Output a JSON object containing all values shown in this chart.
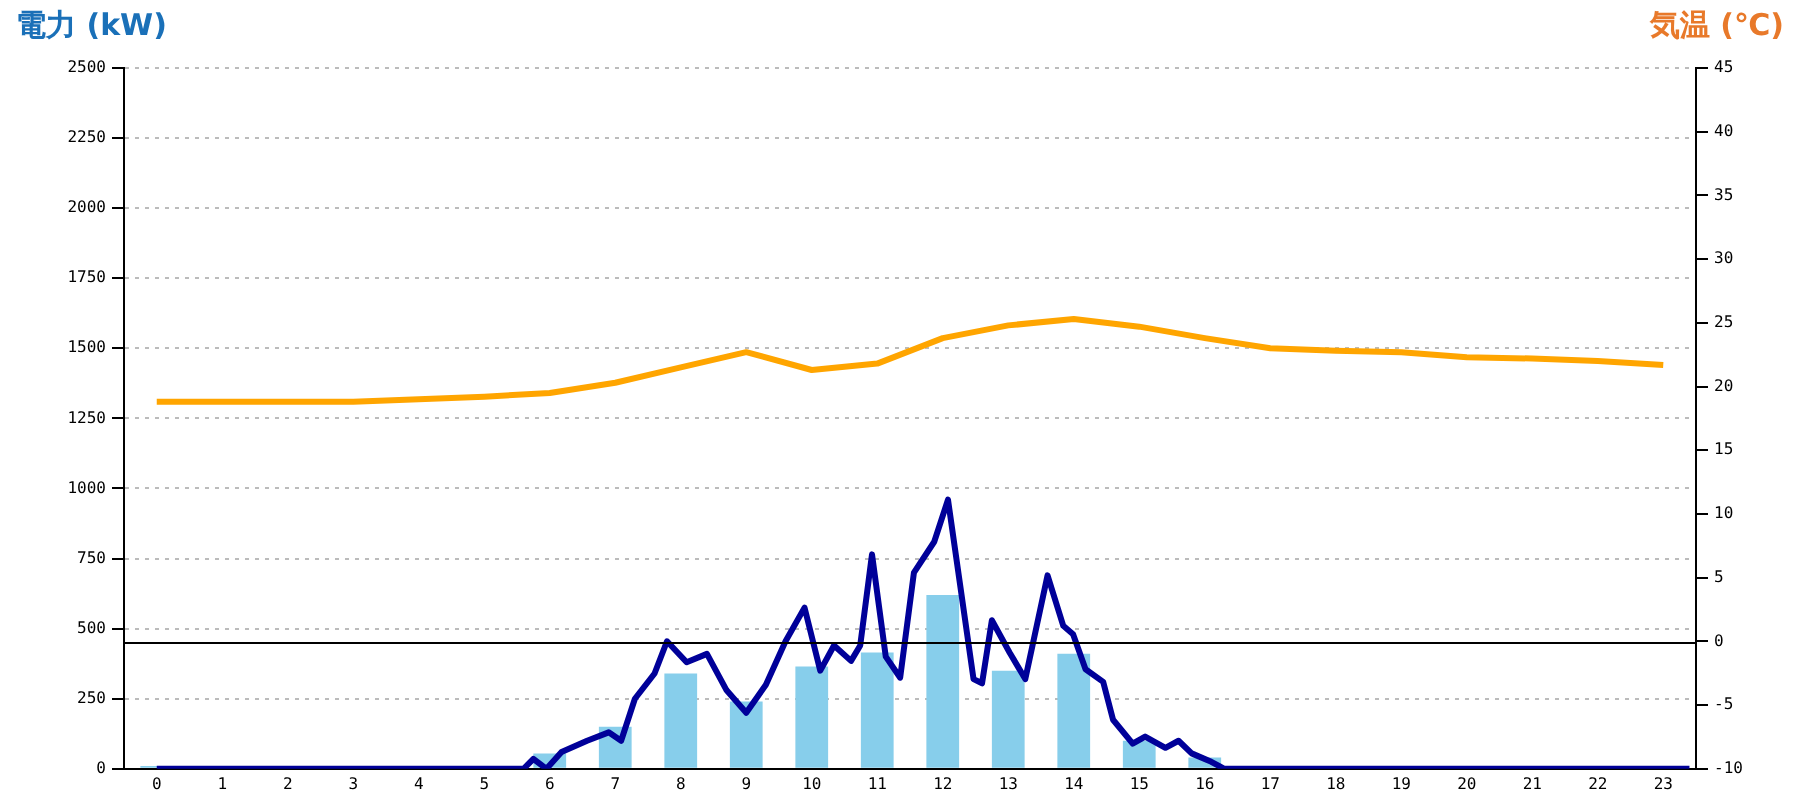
{
  "chart_data": {
    "type": "bar",
    "ylabel": "電力 (kW)",
    "y2label": "気温 (℃)",
    "x": [
      0,
      1,
      2,
      3,
      4,
      5,
      6,
      7,
      8,
      9,
      10,
      11,
      12,
      13,
      14,
      15,
      16,
      17,
      18,
      19,
      20,
      21,
      22,
      23
    ],
    "xlim": [
      -0.5,
      23.5
    ],
    "xticks": [
      0,
      1,
      2,
      3,
      4,
      5,
      6,
      7,
      8,
      9,
      10,
      11,
      12,
      13,
      14,
      15,
      16,
      17,
      18,
      19,
      20,
      21,
      22,
      23
    ],
    "series": [
      {
        "color": "#87ceeb",
        "values": [
          10,
          10,
          10,
          10,
          10,
          10,
          55,
          150,
          340,
          240,
          365,
          415,
          620,
          350,
          410,
          100,
          40,
          10,
          10,
          10,
          10,
          10,
          10,
          10
        ]
      },
      {
        "type": "line",
        "color": "#000099",
        "x": [
          0,
          5.6,
          5.75,
          5.95,
          6.18,
          6.57,
          6.9,
          7.09,
          7.3,
          7.6,
          7.79,
          8.09,
          8.4,
          8.7,
          9.0,
          9.3,
          9.6,
          9.89,
          10.13,
          10.34,
          10.6,
          10.74,
          10.92,
          11.13,
          11.35,
          11.56,
          11.87,
          12.08,
          12.47,
          12.6,
          12.75,
          13.02,
          13.26,
          13.6,
          13.84,
          13.99,
          14.18,
          14.45,
          14.6,
          14.9,
          15.09,
          15.4,
          15.6,
          15.8,
          16.1,
          16.3,
          23.4
        ],
        "values": [
          0,
          0,
          35,
          0,
          60,
          100,
          130,
          100,
          250,
          340,
          455,
          380,
          410,
          280,
          200,
          300,
          455,
          575,
          350,
          440,
          385,
          440,
          765,
          400,
          325,
          700,
          810,
          960,
          320,
          305,
          530,
          415,
          320,
          690,
          510,
          480,
          355,
          310,
          175,
          90,
          115,
          75,
          100,
          55,
          25,
          0,
          0
        ]
      },
      {
        "type": "line",
        "axis": "y2",
        "color": "#ffa500",
        "values": [
          18.8,
          18.8,
          18.8,
          18.8,
          19,
          19.2,
          19.5,
          20.3,
          21.5,
          22.7,
          21.3,
          21.8,
          23.8,
          24.8,
          25.3,
          24.7,
          23.8,
          23,
          22.8,
          22.7,
          22.3,
          22.2,
          22,
          21.7
        ]
      }
    ],
    "ylim": [
      0,
      2500
    ],
    "yticks": [
      0,
      250,
      500,
      750,
      1000,
      1250,
      1500,
      1750,
      2000,
      2250,
      2500
    ],
    "y2lim": [
      -10,
      45
    ],
    "y2ticks": [
      -10,
      -5,
      0,
      5,
      10,
      15,
      20,
      25,
      30,
      35,
      40,
      45
    ],
    "ref_lines": [
      {
        "axis": "y2",
        "value": 0,
        "color": "#000000"
      }
    ],
    "grid": "y",
    "legend": false,
    "marker": "none"
  }
}
